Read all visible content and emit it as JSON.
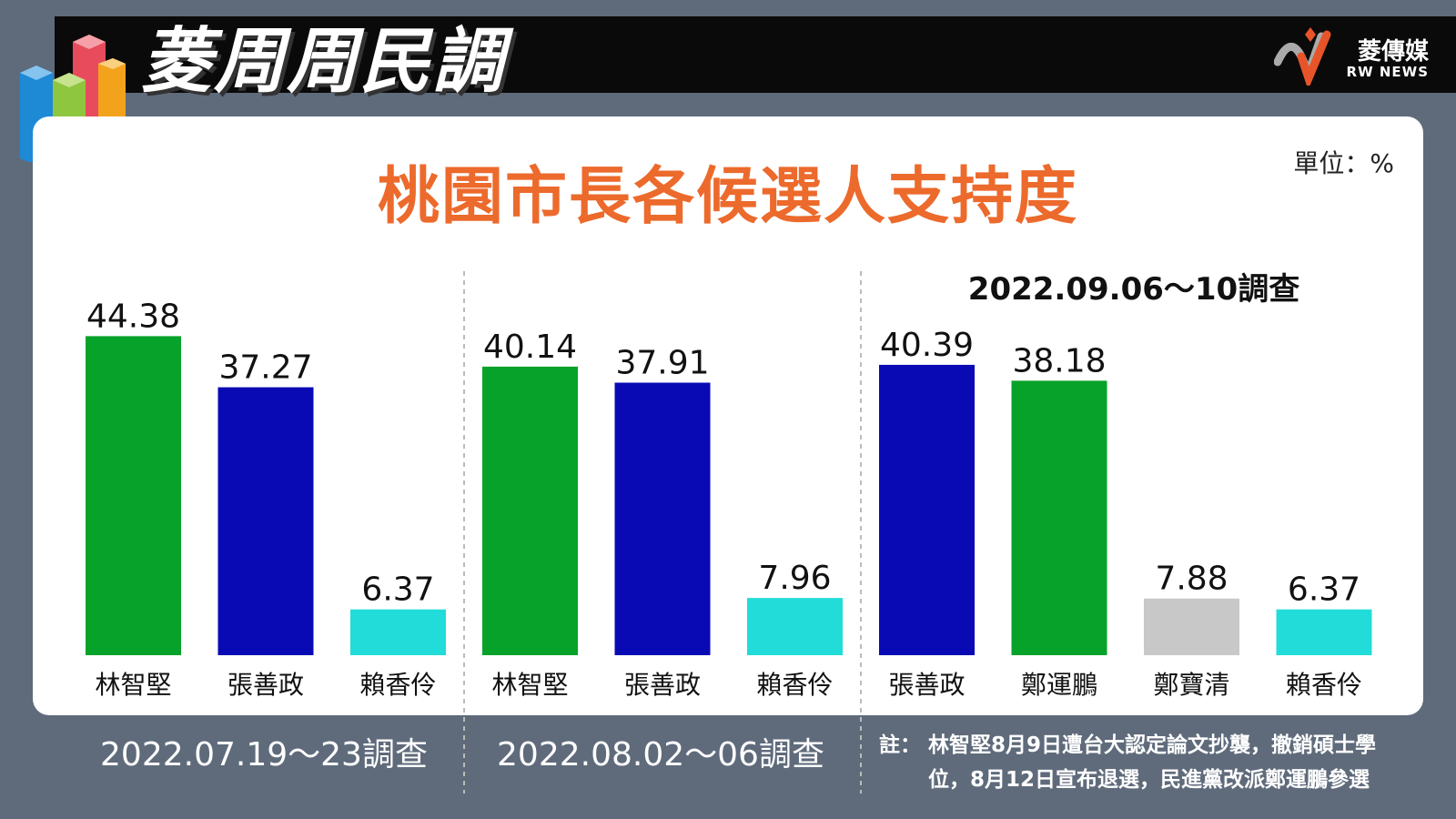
{
  "header": {
    "title": "菱周周民調",
    "brand_cn": "菱傳媒",
    "brand_en": "RW NEWS"
  },
  "unit": "單位：%",
  "colors": {
    "green": "#07a22a",
    "blue": "#0a0ab5",
    "cyan": "#22dcd9",
    "gray": "#c8c8c8",
    "title_orange": "#ec6a2c"
  },
  "note": {
    "line1": "註：  林智堅8月9日遭台大認定論文抄襲，撤銷碩士學",
    "line2": "位，8月12日宣布退選，民進黨改派鄭運鵬參選"
  },
  "chart_data": {
    "type": "bar",
    "title": "桃園市長各候選人支持度",
    "unit": "%",
    "groups": [
      {
        "period": "2022.07.19～23調查",
        "categories": [
          "林智堅",
          "張善政",
          "賴香伶"
        ],
        "values": [
          44.38,
          37.27,
          6.37
        ],
        "labels": [
          "44.38",
          "37.27",
          "6.37"
        ],
        "colors": [
          "#07a22a",
          "#0a0ab5",
          "#22dcd9"
        ]
      },
      {
        "period": "2022.08.02～06調查",
        "categories": [
          "林智堅",
          "張善政",
          "賴香伶"
        ],
        "values": [
          40.14,
          37.91,
          7.96
        ],
        "labels": [
          "40.14",
          "37.91",
          "7.96"
        ],
        "colors": [
          "#07a22a",
          "#0a0ab5",
          "#22dcd9"
        ]
      },
      {
        "period": "2022.09.06～10調查",
        "categories": [
          "張善政",
          "鄭運鵬",
          "鄭寶清",
          "賴香伶"
        ],
        "values": [
          40.39,
          38.18,
          7.88,
          6.37
        ],
        "labels": [
          "40.39",
          "38.18",
          "7.88",
          "6.37"
        ],
        "colors": [
          "#0a0ab5",
          "#07a22a",
          "#c8c8c8",
          "#22dcd9"
        ]
      }
    ]
  }
}
